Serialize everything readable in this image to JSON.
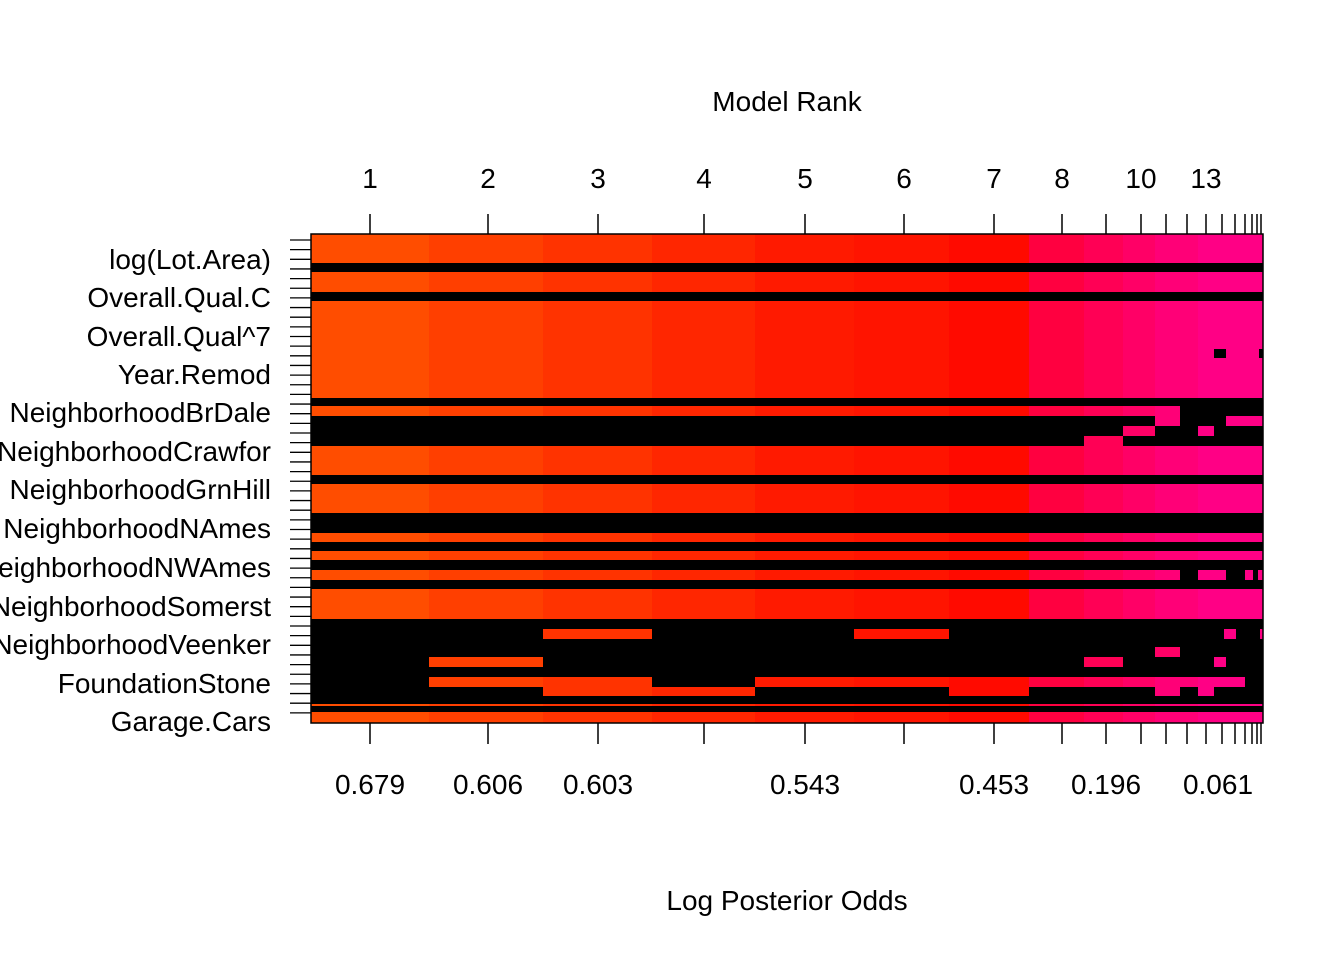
{
  "chart_data": {
    "type": "heatmap",
    "title": "",
    "top_axis_title": "Model Rank",
    "bottom_axis_title": "Log Posterior Odds",
    "rank_tick_labels": [
      "1",
      "2",
      "3",
      "4",
      "5",
      "6",
      "7",
      "8",
      "10",
      "13"
    ],
    "odds_tick_labels": [
      "0.679",
      "0.606",
      "0.603",
      "0.543",
      "0.453",
      "0.196",
      "0.061"
    ],
    "row_labels_shown": [
      "log(Lot.Area)",
      "Overall.Qual.C",
      "Overall.Qual^7",
      "Year.Remod",
      "NeighborhoodBrDale",
      "NeighborhoodCrawfor",
      "NeighborhoodGrnHill",
      "NeighborhoodNAmes",
      "NeighborhoodNWAmes",
      "NeighborhoodSomerst",
      "NeighborhoodVeenker",
      "FoundationStone",
      "Garage.Cars"
    ],
    "x_axis": "models ordered by rank; column width proportional to posterior probability",
    "column_colors": [
      "#FF4D00",
      "#FF3F00",
      "#FF3300",
      "#FF2600",
      "#FF1A00",
      "#FF1400",
      "#FF0A00",
      "#FF0040",
      "#FF0055",
      "#FF0066",
      "#FF0077",
      "#FF0085"
    ],
    "inclusion_color_note": "black = excluded"
  }
}
